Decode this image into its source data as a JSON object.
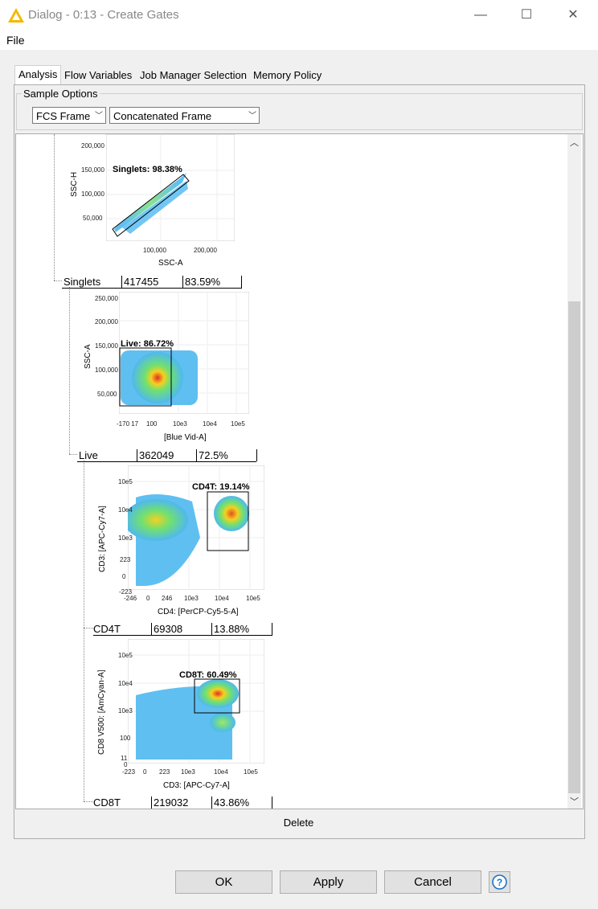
{
  "window": {
    "title": "Dialog - 0:13 - Create Gates",
    "minimize": "—",
    "maximize": "☐",
    "close": "✕"
  },
  "menu": {
    "file": "File"
  },
  "tabs": [
    "Analysis",
    "Flow Variables",
    "Job Manager Selection",
    "Memory Policy"
  ],
  "sample_options": {
    "legend": "Sample Options",
    "frame_select": "FCS Frame",
    "concat_select": "Concatenated Frame"
  },
  "plots": [
    {
      "xlabel": "SSC-A",
      "ylabel": "SSC-H",
      "xticks": [
        "100,000",
        "200,000"
      ],
      "yticks": [
        "200,000",
        "150,000",
        "100,000",
        "50,000"
      ],
      "gate_label": "Singlets: 98.38%"
    },
    {
      "xlabel": "[Blue Vid-A]",
      "ylabel": "SSC-A",
      "xticks": [
        "-170 17",
        "100",
        "10e3",
        "10e4",
        "10e5"
      ],
      "yticks": [
        "250,000",
        "200,000",
        "150,000",
        "100,000",
        "50,000"
      ],
      "gate_label": "Live: 86.72%"
    },
    {
      "xlabel": "CD4: [PerCP-Cy5-5-A]",
      "ylabel": "CD3: [APC-Cy7-A]",
      "xticks": [
        "-246",
        "0",
        "246",
        "10e3",
        "10e4",
        "10e5"
      ],
      "yticks": [
        "10e5",
        "10e4",
        "10e3",
        "223",
        "0",
        "-223"
      ],
      "gate_label": "CD4T: 19.14%"
    },
    {
      "xlabel": "CD3: [APC-Cy7-A]",
      "ylabel": "CD8 V500: [AmCyan-A]",
      "xticks": [
        "-223",
        "0",
        "223",
        "10e3",
        "10e4",
        "10e5"
      ],
      "yticks": [
        "10e5",
        "10e4",
        "10e3",
        "100",
        "11",
        "0"
      ],
      "gate_label": "CD8T: 60.49%"
    }
  ],
  "gates": [
    {
      "name": "Singlets",
      "count": "417455",
      "percent": "83.59%"
    },
    {
      "name": "Live",
      "count": "362049",
      "percent": "72.5%"
    },
    {
      "name": "CD4T",
      "count": "69308",
      "percent": "13.88%"
    },
    {
      "name": "CD8T",
      "count": "219032",
      "percent": "43.86%"
    }
  ],
  "delete_label": "Delete",
  "buttons": {
    "ok": "OK",
    "apply": "Apply",
    "cancel": "Cancel",
    "help": "?"
  }
}
